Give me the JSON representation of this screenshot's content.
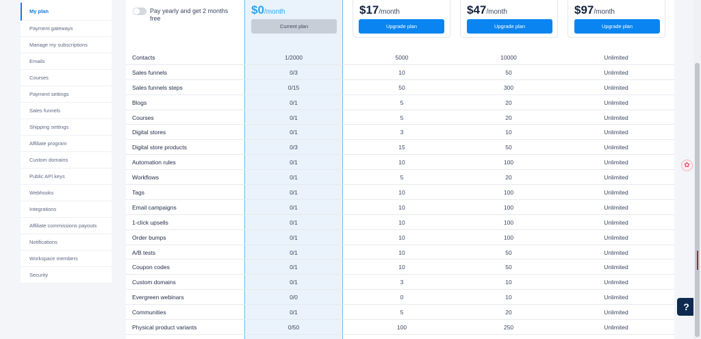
{
  "sidebar": {
    "items": [
      {
        "label": "My plan",
        "active": true
      },
      {
        "label": "Payment gateways"
      },
      {
        "label": "Manage my subscriptions"
      },
      {
        "label": "Emails"
      },
      {
        "label": "Courses"
      },
      {
        "label": "Payment settings"
      },
      {
        "label": "Sales funnels"
      },
      {
        "label": "Shipping settings"
      },
      {
        "label": "Affiliate program"
      },
      {
        "label": "Custom domains"
      },
      {
        "label": "Public API keys"
      },
      {
        "label": "Webhooks"
      },
      {
        "label": "Integrations"
      },
      {
        "label": "Affiliate commissions payouts"
      },
      {
        "label": "Notifications"
      },
      {
        "label": "Workspace members"
      },
      {
        "label": "Security"
      }
    ]
  },
  "billing_toggle": {
    "label": "Pay yearly and get 2 months free",
    "enabled": false
  },
  "plans": [
    {
      "price": "$0",
      "period": "/month",
      "button": "Current plan",
      "current": true
    },
    {
      "price": "$17",
      "period": "/month",
      "button": "Upgrade plan"
    },
    {
      "price": "$47",
      "period": "/month",
      "button": "Upgrade plan"
    },
    {
      "price": "$97",
      "period": "/month",
      "button": "Upgrade plan"
    }
  ],
  "features": [
    {
      "name": "Contacts",
      "values": [
        "1/2000",
        "5000",
        "10000",
        "Unlimited"
      ]
    },
    {
      "name": "Sales funnels",
      "values": [
        "0/3",
        "10",
        "50",
        "Unlimited"
      ]
    },
    {
      "name": "Sales funnels steps",
      "values": [
        "0/15",
        "50",
        "300",
        "Unlimited"
      ]
    },
    {
      "name": "Blogs",
      "values": [
        "0/1",
        "5",
        "20",
        "Unlimited"
      ]
    },
    {
      "name": "Courses",
      "values": [
        "0/1",
        "5",
        "20",
        "Unlimited"
      ]
    },
    {
      "name": "Digital stores",
      "values": [
        "0/1",
        "3",
        "10",
        "Unlimited"
      ]
    },
    {
      "name": "Digital store products",
      "values": [
        "0/3",
        "15",
        "50",
        "Unlimited"
      ]
    },
    {
      "name": "Automation rules",
      "values": [
        "0/1",
        "10",
        "100",
        "Unlimited"
      ]
    },
    {
      "name": "Workflows",
      "values": [
        "0/1",
        "5",
        "20",
        "Unlimited"
      ]
    },
    {
      "name": "Tags",
      "values": [
        "0/1",
        "10",
        "100",
        "Unlimited"
      ]
    },
    {
      "name": "Email campaigns",
      "values": [
        "0/1",
        "10",
        "100",
        "Unlimited"
      ]
    },
    {
      "name": "1-click upsells",
      "values": [
        "0/1",
        "10",
        "100",
        "Unlimited"
      ]
    },
    {
      "name": "Order bumps",
      "values": [
        "0/1",
        "10",
        "100",
        "Unlimited"
      ]
    },
    {
      "name": "A/B tests",
      "values": [
        "0/1",
        "10",
        "50",
        "Unlimited"
      ]
    },
    {
      "name": "Coupon codes",
      "values": [
        "0/1",
        "10",
        "50",
        "Unlimited"
      ]
    },
    {
      "name": "Custom domains",
      "values": [
        "0/1",
        "3",
        "10",
        "Unlimited"
      ]
    },
    {
      "name": "Evergreen webinars",
      "values": [
        "0/0",
        "0",
        "10",
        "Unlimited"
      ]
    },
    {
      "name": "Communities",
      "values": [
        "0/1",
        "5",
        "20",
        "Unlimited"
      ]
    },
    {
      "name": "Physical product variants",
      "values": [
        "0/50",
        "100",
        "250",
        "Unlimited"
      ]
    }
  ],
  "help_button": {
    "label": "?"
  },
  "floating_widget": {
    "icon": "flower-icon"
  },
  "colors": {
    "accent": "#0a84f0",
    "free_column": "#eaf3fb",
    "help": "#0e2a4f"
  }
}
